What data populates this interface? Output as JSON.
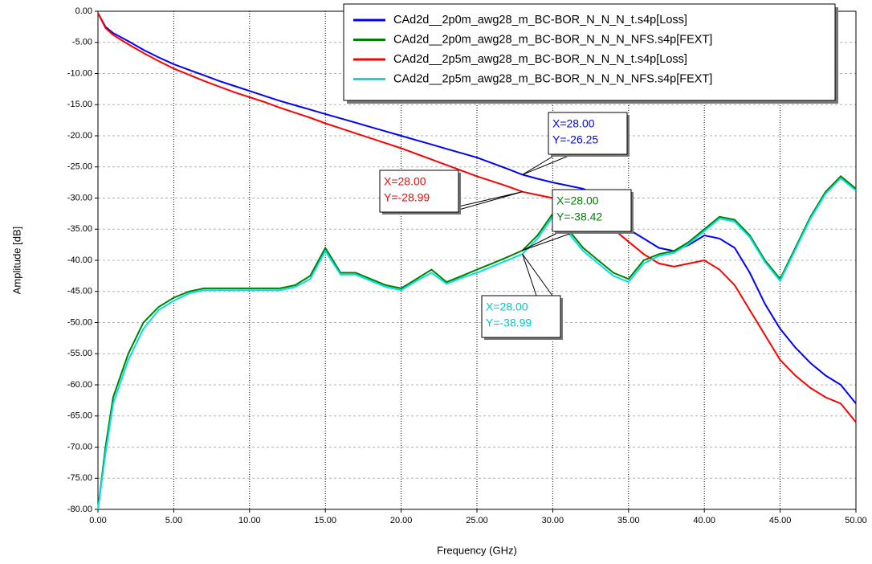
{
  "chart_data": {
    "type": "line",
    "x_label": "Frequency (GHz)",
    "y_label": "Amplitude [dB]",
    "xlim": [
      0,
      50
    ],
    "ylim": [
      -80,
      0
    ],
    "xticks": [
      {
        "value": 0,
        "label": "0.00"
      },
      {
        "value": 5,
        "label": "5.00"
      },
      {
        "value": 10,
        "label": "10.00"
      },
      {
        "value": 15,
        "label": "15.00"
      },
      {
        "value": 20,
        "label": "20.00"
      },
      {
        "value": 25,
        "label": "25.00"
      },
      {
        "value": 30,
        "label": "30.00"
      },
      {
        "value": 35,
        "label": "35.00"
      },
      {
        "value": 40,
        "label": "40.00"
      },
      {
        "value": 45,
        "label": "45.00"
      },
      {
        "value": 50,
        "label": "50.00"
      }
    ],
    "yticks": [
      {
        "value": 0,
        "label": "0.00"
      },
      {
        "value": -5,
        "label": "-5.00"
      },
      {
        "value": -10,
        "label": "-10.00"
      },
      {
        "value": -15,
        "label": "-15.00"
      },
      {
        "value": -20,
        "label": "-20.00"
      },
      {
        "value": -25,
        "label": "-25.00"
      },
      {
        "value": -30,
        "label": "-30.00"
      },
      {
        "value": -35,
        "label": "-35.00"
      },
      {
        "value": -40,
        "label": "-40.00"
      },
      {
        "value": -45,
        "label": "-45.00"
      },
      {
        "value": -50,
        "label": "-50.00"
      },
      {
        "value": -55,
        "label": "-55.00"
      },
      {
        "value": -60,
        "label": "-60.00"
      },
      {
        "value": -65,
        "label": "-65.00"
      },
      {
        "value": -70,
        "label": "-70.00"
      },
      {
        "value": -75,
        "label": "-75.00"
      },
      {
        "value": -80,
        "label": "-80.00"
      }
    ],
    "grid": true,
    "legend": "top-right",
    "x": [
      0,
      0.5,
      1,
      2,
      3,
      4,
      5,
      6,
      7,
      8,
      9,
      10,
      11,
      12,
      13,
      14,
      15,
      16,
      17,
      18,
      19,
      20,
      21,
      22,
      23,
      24,
      25,
      26,
      27,
      28,
      29,
      30,
      31,
      32,
      33,
      34,
      35,
      36,
      37,
      38,
      39,
      40,
      41,
      42,
      43,
      44,
      45,
      46,
      47,
      48,
      49,
      50
    ],
    "series": [
      {
        "name": "CAd2d__2p0m_awg28_m_BC-BOR_N_N_N_t.s4p[Loss]",
        "color": "#0000ff",
        "values": [
          -0.3,
          -2.5,
          -3.5,
          -4.8,
          -6.2,
          -7.4,
          -8.5,
          -9.4,
          -10.3,
          -11.2,
          -12,
          -12.8,
          -13.6,
          -14.4,
          -15.1,
          -15.8,
          -16.5,
          -17.2,
          -17.9,
          -18.6,
          -19.3,
          -20,
          -20.7,
          -21.4,
          -22.1,
          -22.8,
          -23.5,
          -24.4,
          -25.3,
          -26.25,
          -26.9,
          -27.5,
          -28,
          -28.5,
          -29.5,
          -32,
          -35,
          -36.5,
          -38,
          -38.5,
          -37.5,
          -36,
          -36.5,
          -38,
          -42,
          -47,
          -51,
          -54,
          -56.5,
          -58.5,
          -60,
          -63
        ]
      },
      {
        "name": "CAd2d__2p0m_awg28_m_BC-BOR_N_N_N_NFS.s4p[FEXT]",
        "color": "#008000",
        "values": [
          -80,
          -70,
          -62,
          -55,
          -50,
          -47.5,
          -46,
          -45,
          -44.5,
          -44.5,
          -44.5,
          -44.5,
          -44.5,
          -44.5,
          -44,
          -42.5,
          -38,
          -42,
          -42,
          -43,
          -44,
          -44.5,
          -43,
          -41.5,
          -43.5,
          -42.5,
          -41.5,
          -40.5,
          -39.5,
          -38.42,
          -36,
          -32.5,
          -35,
          -38,
          -40,
          -42,
          -43,
          -40,
          -39,
          -38.5,
          -37,
          -35,
          -33,
          -33.5,
          -36,
          -40,
          -43,
          -38,
          -33,
          -29,
          -26.5,
          -28.5
        ]
      },
      {
        "name": "CAd2d__2p5m_awg28_m_BC-BOR_N_N_N_t.s4p[Loss]",
        "color": "#ff0000",
        "values": [
          -0.3,
          -2.7,
          -3.8,
          -5.3,
          -6.7,
          -8,
          -9.2,
          -10.2,
          -11.2,
          -12.1,
          -13,
          -13.8,
          -14.6,
          -15.5,
          -16.3,
          -17.1,
          -18,
          -18.8,
          -19.6,
          -20.4,
          -21.2,
          -22,
          -22.9,
          -23.8,
          -24.7,
          -25.6,
          -26.5,
          -27.3,
          -28.1,
          -28.99,
          -29.5,
          -30,
          -30.5,
          -31,
          -32,
          -35,
          -37,
          -39,
          -40.5,
          -41,
          -40.5,
          -40,
          -41.5,
          -44,
          -48,
          -52,
          -56,
          -58.5,
          -60.5,
          -62,
          -63,
          -66
        ]
      },
      {
        "name": "CAd2d__2p5m_awg28_m_BC-BOR_N_N_N_NFS.s4p[FEXT]",
        "color": "#00e0e0",
        "values": [
          -80,
          -71,
          -63,
          -56,
          -51,
          -48,
          -46.5,
          -45.3,
          -44.8,
          -44.8,
          -44.8,
          -44.8,
          -44.8,
          -44.8,
          -44.3,
          -43,
          -38.5,
          -42.3,
          -42.3,
          -43.3,
          -44.3,
          -44.8,
          -43.3,
          -42,
          -43.8,
          -42.8,
          -42,
          -41,
          -40,
          -38.99,
          -36.5,
          -33,
          -35.5,
          -38.5,
          -40.5,
          -42.5,
          -43.5,
          -40.5,
          -39.3,
          -38.8,
          -37.3,
          -35.3,
          -33.3,
          -33.8,
          -36.3,
          -40.3,
          -43.3,
          -38.3,
          -33.3,
          -29.3,
          -26.8,
          -28.8
        ]
      }
    ],
    "annotations": [
      {
        "x": 28,
        "y": -26.25,
        "labels": [
          "X=28.00",
          "Y=-26.25"
        ],
        "color": "#0000ff"
      },
      {
        "x": 28,
        "y": -28.99,
        "labels": [
          "X=28.00",
          "Y=-28.99"
        ],
        "color": "#ff0000"
      },
      {
        "x": 28,
        "y": -38.42,
        "labels": [
          "X=28.00",
          "Y=-38.42"
        ],
        "color": "#008000"
      },
      {
        "x": 28,
        "y": -38.99,
        "labels": [
          "X=28.00",
          "Y=-38.99"
        ],
        "color": "#00c8c8"
      }
    ]
  }
}
